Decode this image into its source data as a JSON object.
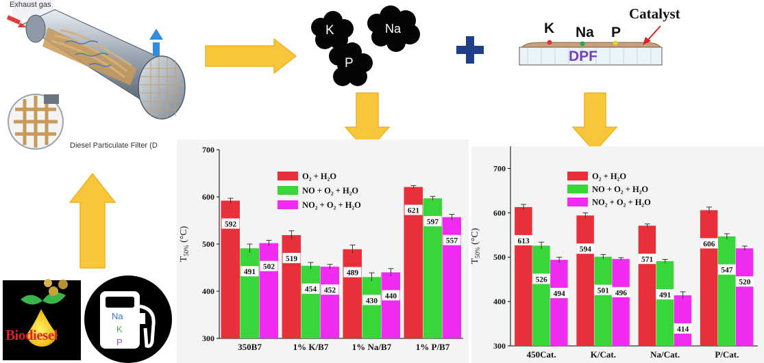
{
  "colors": {
    "red": "#e8303a",
    "green": "#39d539",
    "magenta": "#ef2cf0",
    "arrow_fill": "#f8c63a",
    "arrow_stroke": "#f0b21e",
    "plus": "#1f3f8a",
    "dpf_text": "#7a3fb4",
    "biodiesel_text": "#d8232a"
  },
  "illustration": {
    "exhaust_label": "Exhaust gas",
    "dpf_caption": "Diesel Particulate Filter (D",
    "particles": [
      "K",
      "Na",
      "P"
    ],
    "catalyst_label": "Catalyst",
    "dpf_label": "DPF",
    "surface_labels": [
      "K",
      "Na",
      "P"
    ],
    "biodiesel_label": "Biodiesel",
    "fuel_elements": [
      "Na",
      "K",
      "P"
    ]
  },
  "chart_data": [
    {
      "type": "bar",
      "ylabel": "T50% (°C)",
      "ylabel_main": "T",
      "ylabel_sub": "50%",
      "ylabel_unit": " (°C)",
      "ylim": [
        300,
        700
      ],
      "yticks": [
        "300",
        "400",
        "500",
        "600",
        "700"
      ],
      "categories": [
        "350B7",
        "1% K/B7",
        "1% Na/B7",
        "1% P/B7"
      ],
      "legend_position": "top-center",
      "series": [
        {
          "name": "O₂ + H₂O",
          "values": [
            592,
            519,
            489,
            621
          ],
          "errors": [
            5,
            9,
            9,
            3
          ]
        },
        {
          "name": "NO + O₂ + H₂O",
          "values": [
            491,
            454,
            430,
            597
          ],
          "errors": [
            9,
            7,
            9,
            4
          ]
        },
        {
          "name": "NO₂ + O₂ + H₂O",
          "values": [
            502,
            452,
            440,
            557
          ],
          "errors": [
            6,
            5,
            8,
            6
          ]
        }
      ]
    },
    {
      "type": "bar",
      "ylabel": "T50% (°C)",
      "ylabel_main": "T",
      "ylabel_sub": "50%",
      "ylabel_unit": " (°C)",
      "ylim": [
        300,
        750
      ],
      "yticks": [
        "300",
        "400",
        "500",
        "600",
        "700"
      ],
      "categories": [
        "450Cat.",
        "K/Cat.",
        "Na/Cat.",
        "P/Cat."
      ],
      "legend_position": "top-center",
      "series": [
        {
          "name": "O₂ + H₂O",
          "values": [
            613,
            594,
            571,
            606
          ],
          "errors": [
            6,
            6,
            4,
            7
          ]
        },
        {
          "name": "NO + O₂ + H₂O",
          "values": [
            526,
            501,
            491,
            547
          ],
          "errors": [
            8,
            5,
            4,
            6
          ]
        },
        {
          "name": "NO₂ + O₂ + H₂O",
          "values": [
            494,
            496,
            414,
            520
          ],
          "errors": [
            6,
            3,
            8,
            5
          ]
        }
      ]
    }
  ]
}
